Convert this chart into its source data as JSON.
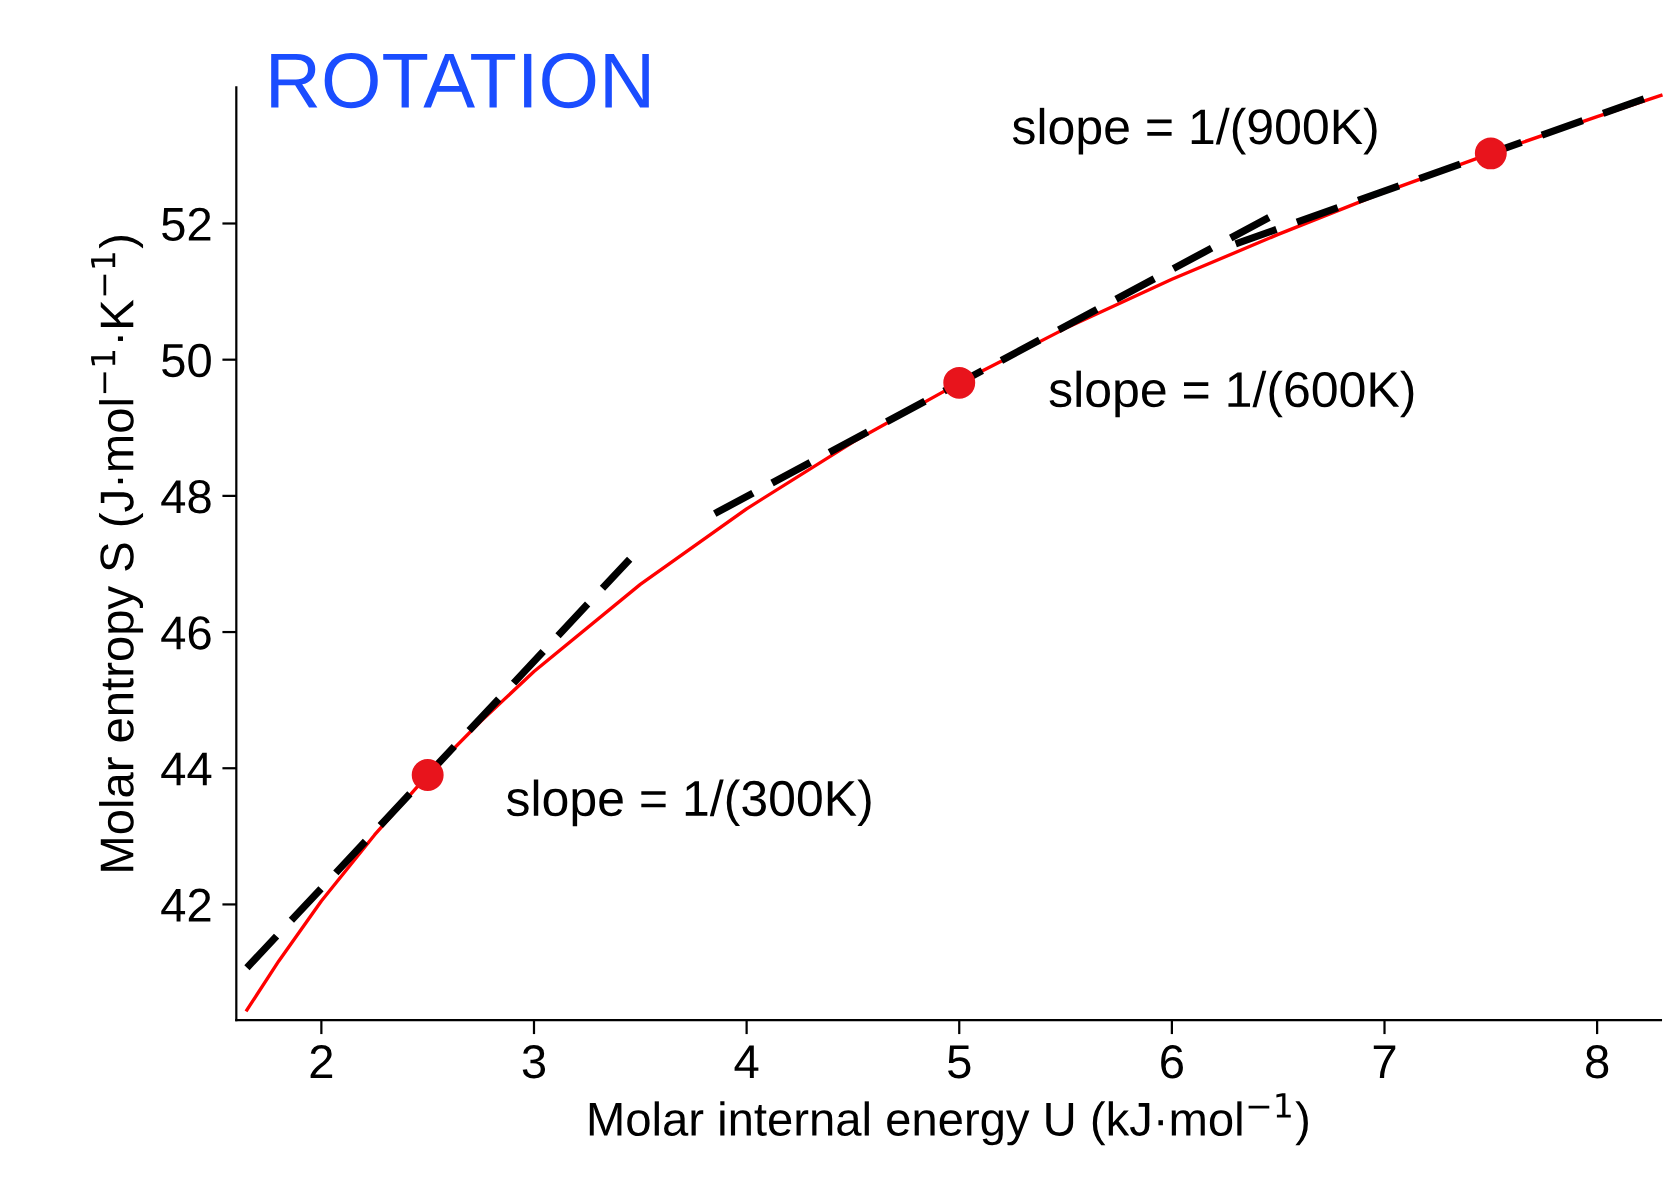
{
  "chart_data": {
    "type": "line",
    "title": "ROTATION",
    "xlabel": "Molar internal energy U (kJ·mol$^{−1}$)",
    "ylabel": "Molar entropy S (J·mol$^{−1}$·K$^{−1}$)",
    "xlim": [
      1.6,
      8.3
    ],
    "ylim": [
      40.3,
      54.0
    ],
    "xticks": [
      2,
      3,
      4,
      5,
      6,
      7,
      8
    ],
    "yticks": [
      42,
      44,
      46,
      48,
      50,
      52
    ],
    "grid": false,
    "legend": false,
    "series": [
      {
        "color": "#ff0000",
        "line_style": "solid",
        "x": [
          1.65,
          1.8,
          2.0,
          2.25,
          2.5,
          2.75,
          3.0,
          3.5,
          4.0,
          4.5,
          5.0,
          5.5,
          6.0,
          6.5,
          7.0,
          7.5,
          8.0,
          8.3
        ],
        "values": [
          40.45,
          41.17,
          42.05,
          43.02,
          43.9,
          44.69,
          45.42,
          46.7,
          47.81,
          48.79,
          49.66,
          50.46,
          51.18,
          51.84,
          52.46,
          53.03,
          53.57,
          53.88
        ]
      },
      {
        "color": "#000000",
        "line_style": "dashed",
        "x": [
          1.65,
          3.45
        ],
        "values": [
          41.07,
          47.07
        ]
      },
      {
        "color": "#000000",
        "line_style": "dashed",
        "x": [
          3.85,
          6.5
        ],
        "values": [
          47.74,
          52.16
        ]
      },
      {
        "color": "#000000",
        "line_style": "dashed",
        "x": [
          6.3,
          8.3
        ],
        "values": [
          51.7,
          53.92
        ]
      },
      {
        "type": "scatter",
        "color": "#e8141c",
        "marker": "circle",
        "x": [
          2.5,
          5.0,
          7.5
        ],
        "values": [
          43.9,
          49.66,
          53.03
        ]
      }
    ],
    "annotations": [
      {
        "text": "slope = 1/(300K)",
        "x": 2.5,
        "y": 43.9
      },
      {
        "text": "slope = 1/(600K)",
        "x": 5.0,
        "y": 49.66
      },
      {
        "text": "slope = 1/(900K)",
        "x": 7.5,
        "y": 53.03
      }
    ]
  }
}
